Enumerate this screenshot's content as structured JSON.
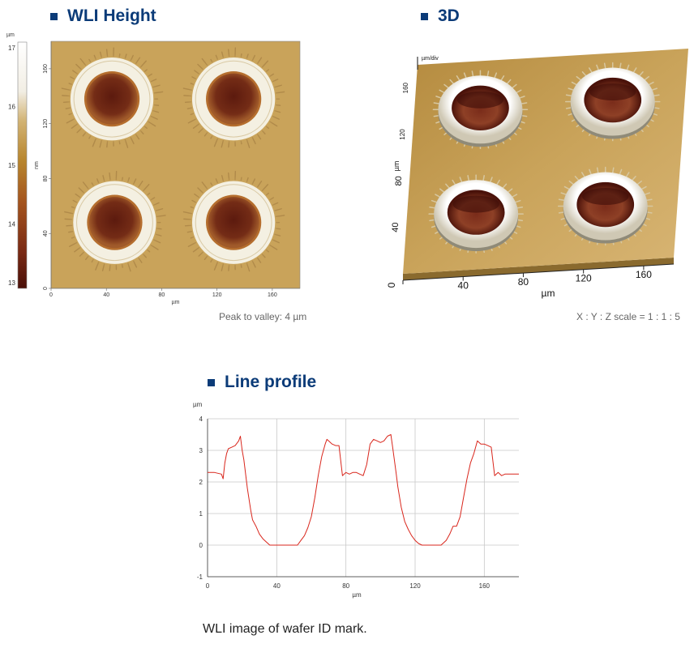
{
  "titles": {
    "wli_height": "WLI Height",
    "three_d": "3D",
    "line_profile": "Line profile"
  },
  "captions": {
    "peak_to_valley": "Peak to valley: 4 µm",
    "scale_ratio": "X : Y : Z scale = 1 : 1 : 5",
    "figure": "WLI image of wafer ID mark."
  },
  "colors": {
    "title": "#0b3b78",
    "profile_line": "#d9261c",
    "surface": "#c9a35a",
    "rim": "#f4f0e2",
    "crater": "#6e2a18"
  },
  "chart_data": [
    {
      "type": "heatmap",
      "title": "WLI Height",
      "colorbar": {
        "unit": "µm",
        "ticks": [
          "13",
          "14",
          "15",
          "16",
          "17"
        ],
        "range": [
          12.9,
          17.1
        ]
      },
      "xlabel": "µm",
      "ylabel": "nm",
      "xticks": [
        "0",
        "40",
        "80",
        "120",
        "160"
      ],
      "yticks": [
        "0",
        "40",
        "80",
        "120",
        "160"
      ],
      "xlim": [
        0,
        180
      ],
      "ylim": [
        0,
        180
      ],
      "features": [
        {
          "name": "mark-top-left",
          "cx": 44,
          "cy": 138
        },
        {
          "name": "mark-top-right",
          "cx": 132,
          "cy": 138
        },
        {
          "name": "mark-bottom-left",
          "cx": 46,
          "cy": 48
        },
        {
          "name": "mark-bottom-right",
          "cx": 132,
          "cy": 48
        }
      ]
    },
    {
      "type": "surface",
      "title": "3D",
      "z_unit": "µm/div",
      "xlabel": "µm",
      "ylabel": "µm",
      "xticks": [
        "0",
        "40",
        "80",
        "120",
        "160"
      ],
      "yticks": [
        "40",
        "80",
        "120",
        "160"
      ]
    },
    {
      "type": "line",
      "title": "Line profile",
      "xlabel": "µm",
      "ylabel": "µm",
      "xlim": [
        0,
        180
      ],
      "ylim": [
        -1,
        4
      ],
      "xticks": [
        "0",
        "40",
        "80",
        "120",
        "160"
      ],
      "yticks": [
        "-1",
        "0",
        "1",
        "2",
        "3",
        "4"
      ],
      "grid": true,
      "series": [
        {
          "x": [
            0,
            4,
            8,
            9,
            10,
            11,
            12,
            14,
            16,
            18,
            19,
            20,
            21,
            23,
            25,
            26,
            28,
            30,
            32,
            34,
            36,
            38,
            40,
            45,
            50,
            52,
            54,
            56,
            58,
            60,
            62,
            64,
            66,
            68,
            69,
            70,
            72,
            74,
            76,
            78,
            80,
            82,
            84,
            86,
            88,
            90,
            92,
            94,
            96,
            98,
            100,
            102,
            104,
            106,
            107,
            108,
            109,
            110,
            112,
            114,
            116,
            118,
            120,
            122,
            124,
            126,
            128,
            130,
            132,
            135,
            138,
            140,
            142,
            144,
            146,
            148,
            150,
            152,
            154,
            156,
            158,
            160,
            162,
            164,
            166,
            168,
            170,
            172,
            175,
            180
          ],
          "y": [
            2.3,
            2.3,
            2.25,
            2.1,
            2.6,
            2.9,
            3.05,
            3.1,
            3.15,
            3.3,
            3.45,
            3.0,
            2.7,
            1.8,
            1.1,
            0.8,
            0.6,
            0.35,
            0.2,
            0.1,
            0.0,
            0.0,
            0.0,
            0.0,
            0.0,
            0.0,
            0.15,
            0.3,
            0.55,
            0.9,
            1.5,
            2.2,
            2.8,
            3.2,
            3.35,
            3.3,
            3.2,
            3.15,
            3.15,
            2.2,
            2.3,
            2.25,
            2.3,
            2.3,
            2.25,
            2.2,
            2.55,
            3.2,
            3.35,
            3.3,
            3.25,
            3.3,
            3.45,
            3.5,
            3.1,
            2.7,
            2.3,
            1.85,
            1.2,
            0.75,
            0.5,
            0.3,
            0.15,
            0.05,
            0.0,
            0.0,
            0.0,
            0.0,
            0.0,
            0.0,
            0.15,
            0.35,
            0.6,
            0.6,
            0.9,
            1.5,
            2.1,
            2.6,
            2.9,
            3.3,
            3.2,
            3.2,
            3.15,
            3.1,
            2.2,
            2.3,
            2.2,
            2.25,
            2.25,
            2.25
          ]
        }
      ]
    }
  ]
}
